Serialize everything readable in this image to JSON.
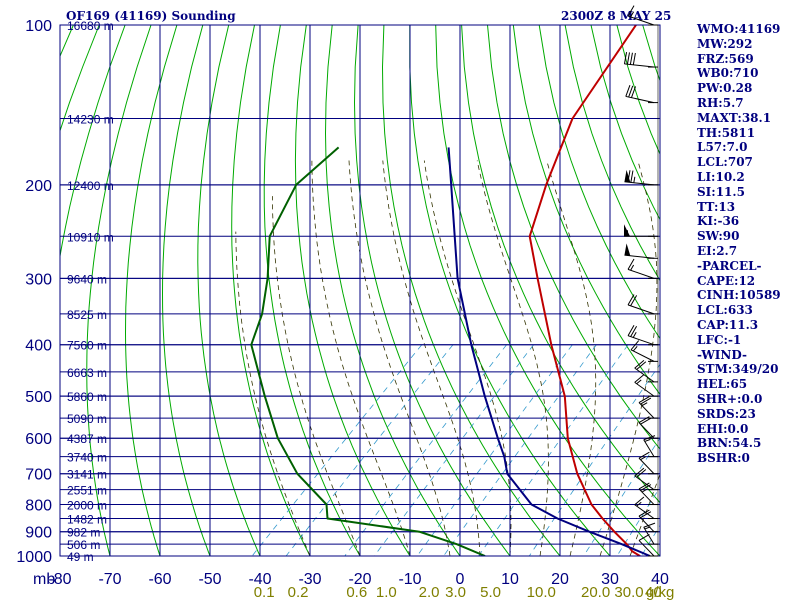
{
  "header": {
    "title": "OF169 (41169) Sounding",
    "time": "2300Z  8 MAY 25"
  },
  "indices": [
    "WMO:41169",
    "MW:292",
    "FRZ:569",
    "WB0:710",
    "PW:0.28",
    "RH:5.7",
    "MAXT:38.1",
    "TH:5811",
    "L57:7.0",
    "LCL:707",
    "LI:10.2",
    "SI:11.5",
    "TT:13",
    "KI:-36",
    "SW:90",
    "EI:2.7",
    "-PARCEL-",
    "CAPE:12",
    "CINH:10589",
    "LCL:633",
    "CAP:11.3",
    "LFC:-1",
    "-WIND-",
    "STM:349/20",
    "HEL:65",
    "SHR+:0.0",
    "SRDS:23",
    "EHI:0.0",
    "BRN:54.5",
    "BSHR:0"
  ],
  "chart_data": {
    "type": "line",
    "title": "OF169 (41169) Sounding",
    "chart_kind": "skew-t log-p sounding",
    "y_scale": "log",
    "ylim": [
      100,
      1000
    ],
    "xlim": [
      -80,
      40
    ],
    "pressure_ticks": [
      "100",
      "200",
      "300",
      "400",
      "500",
      "600",
      "700",
      "800",
      "900",
      "1000"
    ],
    "pressure_tick_values": [
      100,
      200,
      300,
      400,
      500,
      600,
      700,
      800,
      900,
      1000
    ],
    "temperature_ticks": [
      "-80",
      "-70",
      "-60",
      "-50",
      "-40",
      "-30",
      "-20",
      "-10",
      "0",
      "10",
      "20",
      "30",
      "40"
    ],
    "temperature_tick_values": [
      -80,
      -70,
      -60,
      -50,
      -40,
      -30,
      -20,
      -10,
      0,
      10,
      20,
      30,
      40
    ],
    "y_unit_label": "mb",
    "mixing_ratio_unit": "g/kg",
    "mixing_ratio_ticks": [
      "0.1",
      "0.2",
      "0.6",
      "1.0",
      "2.0",
      "3.0",
      "5.0",
      "10.0",
      "20.0",
      "30.0",
      "40"
    ],
    "mixing_ratio_values": [
      0.1,
      0.2,
      0.6,
      1.0,
      2.0,
      3.0,
      5.0,
      10.0,
      20.0,
      30.0,
      40
    ],
    "heights": [
      {
        "label": "16680 m",
        "p": 100
      },
      {
        "label": "14230 m",
        "p": 150
      },
      {
        "label": "12400 m",
        "p": 200
      },
      {
        "label": "10910 m",
        "p": 250
      },
      {
        "label": "9640 m",
        "p": 300
      },
      {
        "label": "8525 m",
        "p": 350
      },
      {
        "label": "7560 m",
        "p": 400
      },
      {
        "label": "6663 m",
        "p": 450
      },
      {
        "label": "5860 m",
        "p": 500
      },
      {
        "label": "5090 m",
        "p": 550
      },
      {
        "label": "4387 m",
        "p": 600
      },
      {
        "label": "3740 m",
        "p": 650
      },
      {
        "label": "3141 m",
        "p": 700
      },
      {
        "label": "2551 m",
        "p": 750
      },
      {
        "label": "2000 m",
        "p": 800
      },
      {
        "label": "1482 m",
        "p": 850
      },
      {
        "label": "982 m",
        "p": 900
      },
      {
        "label": "506 m",
        "p": 950
      },
      {
        "label": "49 m",
        "p": 1000
      }
    ],
    "series": [
      {
        "key": "temperature",
        "color": "#bf0000",
        "points": [
          {
            "p": 1000,
            "t": 36
          },
          {
            "p": 980,
            "t": 33.5
          },
          {
            "p": 950,
            "t": 31
          },
          {
            "p": 900,
            "t": 26
          },
          {
            "p": 850,
            "t": 21
          },
          {
            "p": 800,
            "t": 16
          },
          {
            "p": 700,
            "t": 7
          },
          {
            "p": 600,
            "t": -2
          },
          {
            "p": 500,
            "t": -11
          },
          {
            "p": 400,
            "t": -24
          },
          {
            "p": 300,
            "t": -40
          },
          {
            "p": 250,
            "t": -50
          },
          {
            "p": 200,
            "t": -57
          },
          {
            "p": 150,
            "t": -65
          },
          {
            "p": 100,
            "t": -71
          }
        ]
      },
      {
        "key": "parcel",
        "color": "#00007f",
        "points": [
          {
            "p": 1000,
            "t": 38
          },
          {
            "p": 950,
            "t": 30
          },
          {
            "p": 900,
            "t": 21
          },
          {
            "p": 850,
            "t": 12
          },
          {
            "p": 800,
            "t": 4
          },
          {
            "p": 700,
            "t": -7
          },
          {
            "p": 650,
            "t": -11
          },
          {
            "p": 600,
            "t": -16
          },
          {
            "p": 500,
            "t": -27
          },
          {
            "p": 400,
            "t": -40
          },
          {
            "p": 300,
            "t": -56
          },
          {
            "p": 250,
            "t": -65
          },
          {
            "p": 200,
            "t": -76
          },
          {
            "p": 170,
            "t": -84
          }
        ]
      },
      {
        "key": "dewpoint",
        "color": "#006000",
        "points": [
          {
            "p": 1000,
            "t": 5
          },
          {
            "p": 950,
            "t": -3
          },
          {
            "p": 900,
            "t": -13
          },
          {
            "p": 850,
            "t": -34
          },
          {
            "p": 800,
            "t": -37
          },
          {
            "p": 700,
            "t": -49
          },
          {
            "p": 600,
            "t": -60
          },
          {
            "p": 500,
            "t": -71
          },
          {
            "p": 400,
            "t": -84
          },
          {
            "p": 350,
            "t": -88
          },
          {
            "p": 300,
            "t": -94
          },
          {
            "p": 250,
            "t": -102
          },
          {
            "p": 200,
            "t": -107
          },
          {
            "p": 170,
            "t": -106
          }
        ]
      }
    ],
    "wind_barbs": [
      {
        "p": 100,
        "dir": 300,
        "kt": 15
      },
      {
        "p": 120,
        "dir": 280,
        "kt": 40
      },
      {
        "p": 140,
        "dir": 290,
        "kt": 30
      },
      {
        "p": 200,
        "dir": 280,
        "kt": 75
      },
      {
        "p": 250,
        "dir": 270,
        "kt": 55
      },
      {
        "p": 275,
        "dir": 280,
        "kt": 50
      },
      {
        "p": 300,
        "dir": 300,
        "kt": 15
      },
      {
        "p": 350,
        "dir": 300,
        "kt": 20
      },
      {
        "p": 400,
        "dir": 300,
        "kt": 25
      },
      {
        "p": 430,
        "dir": 310,
        "kt": 15
      },
      {
        "p": 470,
        "dir": 320,
        "kt": 20
      },
      {
        "p": 500,
        "dir": 320,
        "kt": 15
      },
      {
        "p": 550,
        "dir": 330,
        "kt": 25
      },
      {
        "p": 600,
        "dir": 330,
        "kt": 20
      },
      {
        "p": 650,
        "dir": 340,
        "kt": 15
      },
      {
        "p": 700,
        "dir": 330,
        "kt": 15
      },
      {
        "p": 750,
        "dir": 320,
        "kt": 20
      },
      {
        "p": 800,
        "dir": 330,
        "kt": 25
      },
      {
        "p": 850,
        "dir": 320,
        "kt": 15
      },
      {
        "p": 900,
        "dir": 330,
        "kt": 20
      },
      {
        "p": 950,
        "dir": 340,
        "kt": 15
      },
      {
        "p": 1000,
        "dir": 330,
        "kt": 10
      }
    ],
    "colors": {
      "grid": "#00007f",
      "dry_adiabat": "#00aa00",
      "moist_adiabat": "#333300",
      "mixing_ratio": "#3399cc",
      "axis_text": "#00007f",
      "mr_text": "#7f7f00"
    }
  }
}
